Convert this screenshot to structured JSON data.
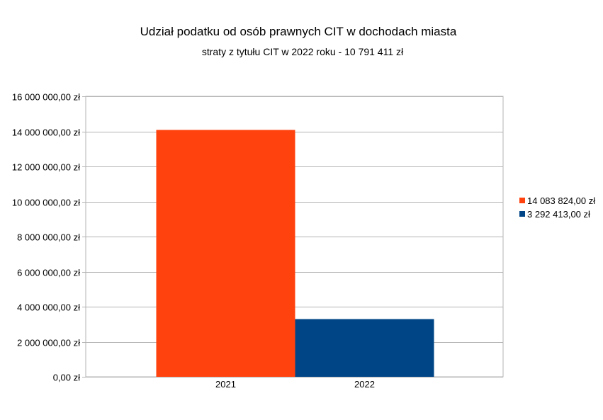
{
  "chart_data": {
    "type": "bar",
    "title": "Udział podatku od osób prawnych CIT w dochodach miasta",
    "subtitle": "straty z tytułu CIT w 2022 roku - 10 791 411 zł",
    "categories": [
      "2021",
      "2022"
    ],
    "series": [
      {
        "name": "14 083 824,00 zł",
        "value": 14083824,
        "category": "2021",
        "color": "#ff420e"
      },
      {
        "name": "3 292 413,00 zł",
        "value": 3292413,
        "category": "2022",
        "color": "#004586"
      }
    ],
    "ylim": [
      0,
      16000000
    ],
    "yticks": [
      0,
      2000000,
      4000000,
      6000000,
      8000000,
      10000000,
      12000000,
      14000000,
      16000000
    ],
    "ytick_labels": [
      "0,00 zł",
      "2 000 000,00 zł",
      "4 000 000,00 zł",
      "6 000 000,00 zł",
      "8 000 000,00 zł",
      "10 000 000,00 zł",
      "12 000 000,00 zł",
      "14 000 000,00 zł",
      "16 000 000,00 zł"
    ],
    "grid": true,
    "legend_position": "right"
  }
}
